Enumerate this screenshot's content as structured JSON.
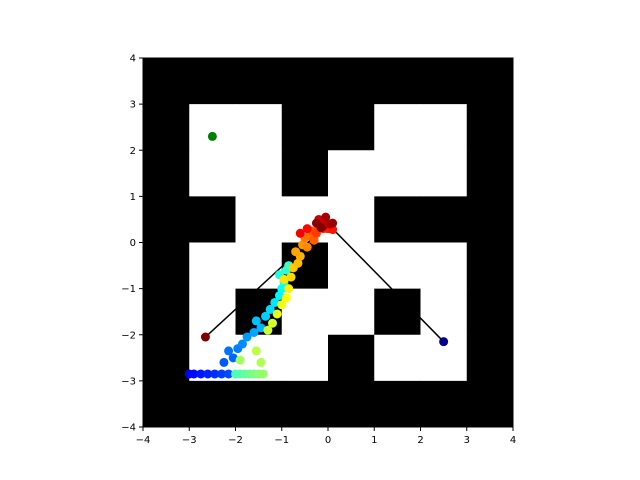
{
  "chart_data": {
    "type": "scatter",
    "title": "",
    "xlabel": "",
    "ylabel": "",
    "xlim": [
      -4,
      4
    ],
    "ylim": [
      -4,
      4
    ],
    "xticks": [
      -4,
      -3,
      -2,
      -1,
      0,
      1,
      2,
      3,
      4
    ],
    "yticks": [
      -4,
      -3,
      -2,
      -1,
      0,
      1,
      2,
      3,
      4
    ],
    "grid": false,
    "legend": "none",
    "colors": {
      "wall": "#000000",
      "free": "#ffffff",
      "goal": "#008000",
      "start": "#00008b",
      "end": "#800000",
      "path": "#000000"
    },
    "map_cells": [
      [
        1,
        1,
        1,
        1,
        1,
        1,
        1,
        1
      ],
      [
        1,
        0,
        0,
        1,
        1,
        0,
        0,
        1
      ],
      [
        1,
        0,
        0,
        1,
        0,
        0,
        0,
        1
      ],
      [
        1,
        1,
        0,
        0,
        0,
        1,
        1,
        1
      ],
      [
        1,
        0,
        0,
        1,
        0,
        0,
        0,
        1
      ],
      [
        1,
        0,
        1,
        0,
        0,
        1,
        0,
        1
      ],
      [
        1,
        0,
        0,
        0,
        1,
        0,
        0,
        1
      ],
      [
        1,
        1,
        1,
        1,
        1,
        1,
        1,
        1
      ]
    ],
    "goal_point": {
      "x": -2.5,
      "y": 2.3
    },
    "reference_path": [
      [
        2.5,
        -2.15
      ],
      [
        0.0,
        0.4
      ],
      [
        -2.65,
        -2.05
      ]
    ],
    "trajectory": {
      "colormap": "jet",
      "color_values": "time",
      "points": [
        [
          2.5,
          -2.15
        ],
        [
          -3.0,
          -2.85
        ],
        [
          -2.9,
          -2.85
        ],
        [
          -2.75,
          -2.85
        ],
        [
          -2.6,
          -2.85
        ],
        [
          -2.45,
          -2.85
        ],
        [
          -2.3,
          -2.85
        ],
        [
          -2.15,
          -2.85
        ],
        [
          -2.25,
          -2.6
        ],
        [
          -2.05,
          -2.5
        ],
        [
          -2.15,
          -2.35
        ],
        [
          -1.95,
          -2.3
        ],
        [
          -1.85,
          -2.2
        ],
        [
          -1.75,
          -2.05
        ],
        [
          -1.6,
          -1.95
        ],
        [
          -1.45,
          -1.85
        ],
        [
          -1.55,
          -1.7
        ],
        [
          -1.35,
          -1.6
        ],
        [
          -1.25,
          -1.45
        ],
        [
          -1.15,
          -1.3
        ],
        [
          -1.05,
          -1.15
        ],
        [
          -1.0,
          -1.0
        ],
        [
          -0.95,
          -0.85
        ],
        [
          -1.05,
          -0.7
        ],
        [
          -0.9,
          -0.6
        ],
        [
          -0.85,
          -0.5
        ],
        [
          -2.0,
          -2.85
        ],
        [
          -1.9,
          -2.85
        ],
        [
          -1.8,
          -2.85
        ],
        [
          -1.7,
          -2.85
        ],
        [
          -1.6,
          -2.85
        ],
        [
          -1.5,
          -2.85
        ],
        [
          -1.4,
          -2.85
        ],
        [
          -1.9,
          -2.55
        ],
        [
          -1.45,
          -2.6
        ],
        [
          -1.55,
          -2.35
        ],
        [
          -1.3,
          -1.9
        ],
        [
          -1.2,
          -1.75
        ],
        [
          -1.1,
          -1.55
        ],
        [
          -1.0,
          -1.35
        ],
        [
          -0.9,
          -1.2
        ],
        [
          -0.85,
          -1.0
        ],
        [
          -0.95,
          -0.8
        ],
        [
          -0.8,
          -0.75
        ],
        [
          -0.75,
          -0.55
        ],
        [
          -0.65,
          -0.45
        ],
        [
          -0.6,
          -0.3
        ],
        [
          -0.7,
          -0.2
        ],
        [
          -0.55,
          -0.05
        ],
        [
          -0.45,
          -0.1
        ],
        [
          -0.5,
          0.1
        ],
        [
          -0.4,
          0.15
        ],
        [
          -0.3,
          0.05
        ],
        [
          -0.35,
          0.25
        ],
        [
          -0.2,
          0.3
        ],
        [
          -0.25,
          0.2
        ],
        [
          -0.1,
          0.3
        ],
        [
          0.0,
          0.3
        ],
        [
          0.1,
          0.28
        ],
        [
          -0.45,
          0.3
        ],
        [
          -0.6,
          0.2
        ],
        [
          -0.15,
          0.45
        ],
        [
          -0.05,
          0.4
        ],
        [
          -0.2,
          0.5
        ],
        [
          -0.1,
          0.35
        ],
        [
          0.05,
          0.4
        ],
        [
          -0.05,
          0.55
        ],
        [
          0.1,
          0.42
        ],
        [
          -0.25,
          0.42
        ],
        [
          -0.15,
          0.32
        ],
        [
          -2.65,
          -2.05
        ]
      ]
    }
  }
}
